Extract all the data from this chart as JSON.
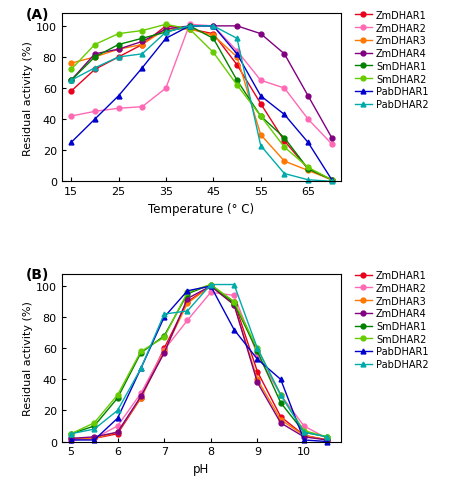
{
  "panel_A": {
    "xlabel": "Temperature (° C)",
    "ylabel": "Residual activity (%)",
    "label": "(A)",
    "xlim": [
      13,
      72
    ],
    "ylim": [
      0,
      108
    ],
    "xticks": [
      15,
      25,
      35,
      45,
      55,
      65
    ],
    "yticks": [
      0,
      20,
      40,
      60,
      80,
      100
    ],
    "series": {
      "ZmDHAR1": {
        "color": "#e8001c",
        "marker": "o",
        "x": [
          15,
          20,
          25,
          30,
          35,
          40,
          45,
          50,
          55,
          60,
          65,
          70
        ],
        "y": [
          58,
          72,
          80,
          88,
          100,
          98,
          95,
          75,
          50,
          26,
          8,
          1
        ]
      },
      "ZmDHAR2": {
        "color": "#ff69b4",
        "marker": "o",
        "x": [
          15,
          20,
          25,
          30,
          35,
          40,
          45,
          50,
          55,
          60,
          65,
          70
        ],
        "y": [
          42,
          45,
          47,
          48,
          60,
          101,
          100,
          84,
          65,
          60,
          40,
          24
        ]
      },
      "ZmDHAR3": {
        "color": "#ff7700",
        "marker": "o",
        "x": [
          15,
          20,
          25,
          30,
          35,
          40,
          45,
          50,
          55,
          60,
          65,
          70
        ],
        "y": [
          76,
          80,
          85,
          88,
          98,
          98,
          94,
          80,
          30,
          13,
          7,
          1
        ]
      },
      "ZmDHAR4": {
        "color": "#800080",
        "marker": "o",
        "x": [
          15,
          20,
          25,
          30,
          35,
          40,
          45,
          50,
          55,
          60,
          65,
          70
        ],
        "y": [
          65,
          82,
          85,
          90,
          98,
          100,
          100,
          100,
          95,
          82,
          55,
          28
        ]
      },
      "SmDHAR1": {
        "color": "#008000",
        "marker": "o",
        "x": [
          15,
          20,
          25,
          30,
          35,
          40,
          45,
          50,
          55,
          60,
          65,
          70
        ],
        "y": [
          65,
          80,
          88,
          92,
          96,
          100,
          92,
          65,
          42,
          28,
          8,
          1
        ]
      },
      "SmDHAR2": {
        "color": "#66cc00",
        "marker": "o",
        "x": [
          15,
          20,
          25,
          30,
          35,
          40,
          45,
          50,
          55,
          60,
          65,
          70
        ],
        "y": [
          72,
          88,
          95,
          97,
          101,
          98,
          83,
          62,
          42,
          22,
          9,
          1
        ]
      },
      "PabDHAR1": {
        "color": "#0000cc",
        "marker": "^",
        "x": [
          15,
          20,
          25,
          30,
          35,
          40,
          45,
          50,
          55,
          60,
          65,
          70
        ],
        "y": [
          25,
          40,
          55,
          73,
          92,
          100,
          100,
          82,
          55,
          43,
          25,
          1
        ]
      },
      "PabDHAR2": {
        "color": "#00aaaa",
        "marker": "^",
        "x": [
          15,
          20,
          25,
          30,
          35,
          40,
          45,
          50,
          55,
          60,
          65,
          70
        ],
        "y": [
          65,
          73,
          80,
          82,
          96,
          100,
          100,
          92,
          23,
          5,
          1,
          0
        ]
      }
    }
  },
  "panel_B": {
    "xlabel": "pH",
    "ylabel": "Residual activity (%)",
    "label": "(B)",
    "xlim": [
      4.8,
      10.8
    ],
    "ylim": [
      0,
      108
    ],
    "xticks": [
      5,
      6,
      7,
      8,
      9,
      10
    ],
    "yticks": [
      0,
      20,
      40,
      60,
      80,
      100
    ],
    "series": {
      "ZmDHAR1": {
        "color": "#e8001c",
        "marker": "o",
        "x": [
          5.0,
          5.5,
          6.0,
          6.5,
          7.0,
          7.5,
          8.0,
          8.5,
          9.0,
          9.5,
          10.0,
          10.5
        ],
        "y": [
          1,
          2,
          5,
          28,
          60,
          90,
          100,
          90,
          45,
          16,
          4,
          1
        ]
      },
      "ZmDHAR2": {
        "color": "#ff69b4",
        "marker": "o",
        "x": [
          5.0,
          5.5,
          6.0,
          6.5,
          7.0,
          7.5,
          8.0,
          8.5,
          9.0,
          9.5,
          10.0,
          10.5
        ],
        "y": [
          1,
          2,
          10,
          31,
          59,
          78,
          96,
          94,
          56,
          30,
          10,
          2
        ]
      },
      "ZmDHAR3": {
        "color": "#ff7700",
        "marker": "o",
        "x": [
          5.0,
          5.5,
          6.0,
          6.5,
          7.0,
          7.5,
          8.0,
          8.5,
          9.0,
          9.5,
          10.0,
          10.5
        ],
        "y": [
          2,
          2,
          6,
          28,
          58,
          89,
          100,
          88,
          40,
          14,
          4,
          1
        ]
      },
      "ZmDHAR4": {
        "color": "#800080",
        "marker": "o",
        "x": [
          5.0,
          5.5,
          6.0,
          6.5,
          7.0,
          7.5,
          8.0,
          8.5,
          9.0,
          9.5,
          10.0,
          10.5
        ],
        "y": [
          2,
          3,
          6,
          29,
          57,
          92,
          100,
          88,
          38,
          12,
          3,
          1
        ]
      },
      "SmDHAR1": {
        "color": "#008000",
        "marker": "o",
        "x": [
          5.0,
          5.5,
          6.0,
          6.5,
          7.0,
          7.5,
          8.0,
          8.5,
          9.0,
          9.5,
          10.0,
          10.5
        ],
        "y": [
          5,
          10,
          28,
          57,
          68,
          95,
          101,
          89,
          58,
          25,
          6,
          3
        ]
      },
      "SmDHAR2": {
        "color": "#66cc00",
        "marker": "o",
        "x": [
          5.0,
          5.5,
          6.0,
          6.5,
          7.0,
          7.5,
          8.0,
          8.5,
          9.0,
          9.5,
          10.0,
          10.5
        ],
        "y": [
          5,
          12,
          30,
          58,
          67,
          96,
          101,
          90,
          60,
          30,
          7,
          3
        ]
      },
      "PabDHAR1": {
        "color": "#0000cc",
        "marker": "^",
        "x": [
          5.0,
          5.5,
          6.0,
          6.5,
          7.0,
          7.5,
          8.0,
          8.5,
          9.0,
          9.5,
          10.0,
          10.5
        ],
        "y": [
          1,
          1,
          15,
          47,
          80,
          97,
          100,
          72,
          53,
          40,
          1,
          0
        ]
      },
      "PabDHAR2": {
        "color": "#00aaaa",
        "marker": "^",
        "x": [
          5.0,
          5.5,
          6.0,
          6.5,
          7.0,
          7.5,
          8.0,
          8.5,
          9.0,
          9.5,
          10.0,
          10.5
        ],
        "y": [
          5,
          8,
          20,
          47,
          82,
          84,
          101,
          101,
          60,
          30,
          6,
          3
        ]
      }
    }
  },
  "legend_order": [
    "ZmDHAR1",
    "ZmDHAR2",
    "ZmDHAR3",
    "ZmDHAR4",
    "SmDHAR1",
    "SmDHAR2",
    "PabDHAR1",
    "PabDHAR2"
  ],
  "figsize": [
    4.74,
    4.81
  ],
  "dpi": 100
}
